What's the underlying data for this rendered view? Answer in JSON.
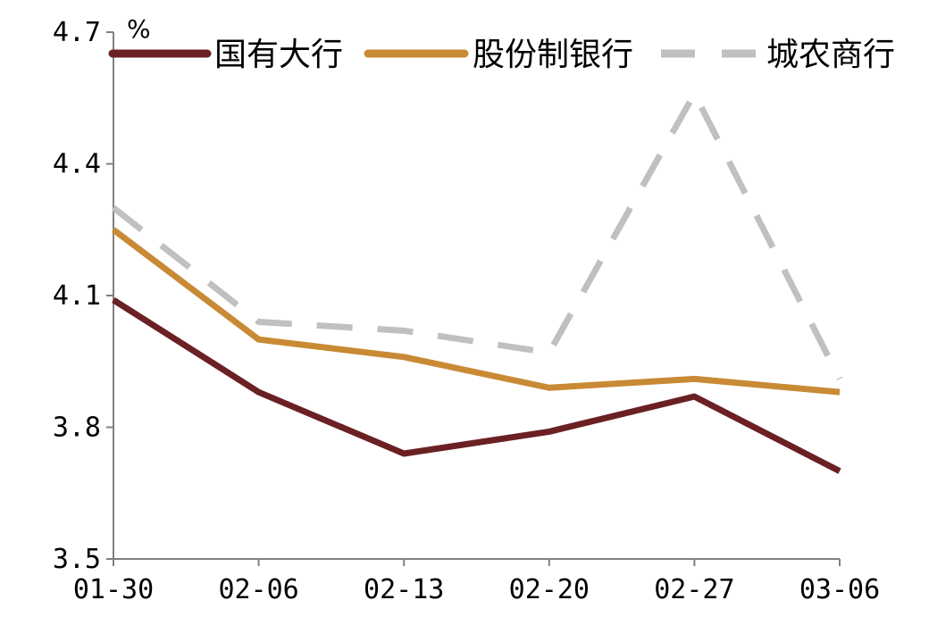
{
  "chart_data": {
    "type": "line",
    "title": "",
    "xlabel": "",
    "ylabel": "%",
    "x": [
      "01-30",
      "02-06",
      "02-13",
      "02-20",
      "02-27",
      "03-06"
    ],
    "yticks": [
      "3.5",
      "3.8",
      "4.1",
      "4.4",
      "4.7"
    ],
    "ylim": [
      3.5,
      4.7
    ],
    "grid": false,
    "legend_position": "top",
    "series": [
      {
        "name": "国有大行",
        "color": "#6b2024",
        "style": "solid",
        "values": [
          4.09,
          3.88,
          3.74,
          3.79,
          3.87,
          3.7
        ]
      },
      {
        "name": "股份制银行",
        "color": "#c98a35",
        "style": "solid",
        "values": [
          4.25,
          4.0,
          3.96,
          3.89,
          3.91,
          3.88
        ]
      },
      {
        "name": "城农商行",
        "color": "#c0c0c0",
        "style": "dashed",
        "values": [
          4.3,
          4.04,
          4.02,
          3.97,
          4.56,
          3.91
        ]
      }
    ]
  }
}
